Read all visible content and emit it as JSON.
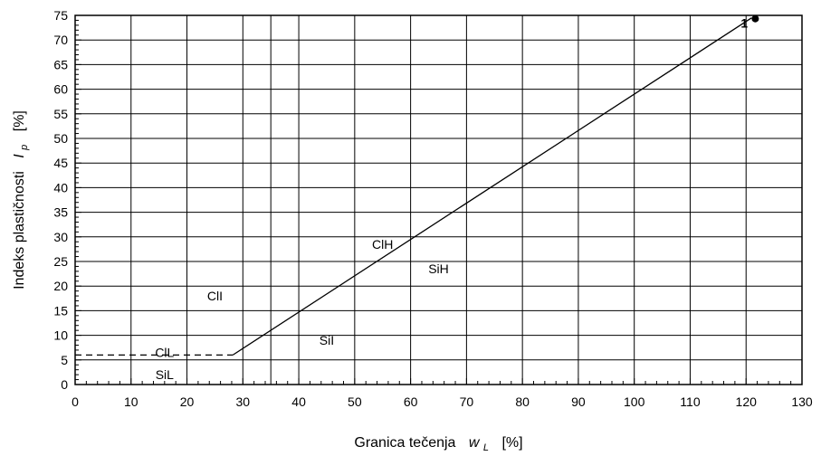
{
  "chart_data": {
    "type": "line",
    "xlabel": {
      "text": "Granica tečenja",
      "symbol": "w",
      "subscript": "L",
      "unit": "[%]"
    },
    "ylabel": {
      "text": "Indeks plastičnosti",
      "symbol": "I",
      "subscript": "p",
      "unit": "[%]"
    },
    "xlim": [
      0,
      130
    ],
    "ylim": [
      0,
      75
    ],
    "x_ticks": [
      "0",
      "10",
      "20",
      "30",
      "40",
      "50",
      "60",
      "70",
      "80",
      "90",
      "100",
      "110",
      "120",
      "130"
    ],
    "y_ticks": [
      "0",
      "5",
      "10",
      "15",
      "20",
      "25",
      "30",
      "35",
      "40",
      "45",
      "50",
      "55",
      "60",
      "65",
      "70",
      "75"
    ],
    "x_major_grid": [
      0,
      10,
      20,
      30,
      35,
      40,
      50,
      60,
      70,
      80,
      90,
      100,
      110,
      120,
      130
    ],
    "y_major_grid": [
      0,
      5,
      10,
      15,
      20,
      25,
      30,
      35,
      40,
      45,
      50,
      55,
      60,
      65,
      70,
      75
    ],
    "grid": true,
    "series": [
      {
        "points": [
          [
            28.2,
            6.0
          ],
          [
            121.0,
            74.5
          ]
        ],
        "style": "solid"
      },
      {
        "points": [
          [
            0,
            6.0
          ],
          [
            28.2,
            6.0
          ]
        ],
        "style": "dashed"
      }
    ],
    "marker": {
      "x": 121.0,
      "y": 74.5,
      "label": "1"
    },
    "zone_labels": [
      {
        "text": "ClH",
        "x": 55,
        "y": 28.5
      },
      {
        "text": "SiH",
        "x": 65,
        "y": 23.5
      },
      {
        "text": "ClI",
        "x": 25,
        "y": 18.0
      },
      {
        "text": "SiI",
        "x": 45,
        "y": 9.0
      },
      {
        "text": "ClL",
        "x": 16,
        "y": 6.5
      },
      {
        "text": "SiL",
        "x": 16,
        "y": 2.0
      }
    ]
  }
}
